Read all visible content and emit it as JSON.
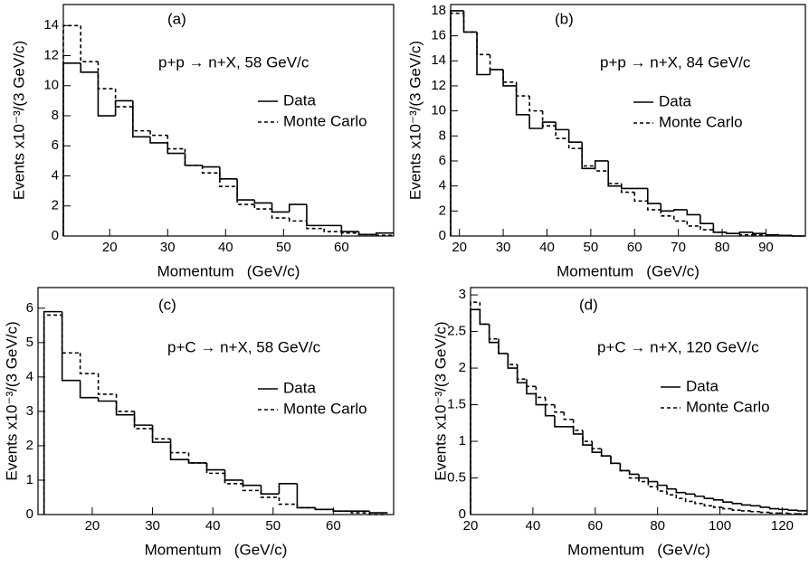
{
  "chart_data": [
    {
      "type": "histogram",
      "panel_label": "(a)",
      "annotation": "p+p → n+X, 58 GeV/c",
      "xlabel": "Momentum   (GeV/c)",
      "ylabel": "Events x10⁻³/(3 GeV/c)",
      "bins": [
        12,
        15,
        18,
        21,
        24,
        27,
        30,
        33,
        36,
        39,
        42,
        45,
        48,
        51,
        54,
        57,
        60,
        63,
        66,
        69
      ],
      "series": [
        {
          "name": "Data",
          "color": "#000000",
          "linestyle": "solid",
          "values": [
            11.5,
            10.9,
            8.0,
            9.0,
            6.6,
            6.2,
            5.5,
            4.7,
            4.6,
            3.8,
            2.4,
            2.2,
            1.6,
            2.1,
            0.7,
            0.7,
            0.3,
            0.1,
            0.2
          ]
        },
        {
          "name": "Monte Carlo",
          "color": "#000000",
          "linestyle": "dashed",
          "values": [
            14.0,
            11.6,
            9.8,
            8.6,
            7.0,
            6.7,
            5.8,
            4.7,
            4.2,
            3.3,
            2.1,
            1.8,
            1.2,
            1.0,
            0.5,
            0.3,
            0.2,
            0.1,
            0.05
          ]
        }
      ],
      "xlim": [
        12,
        69
      ],
      "xticks": [
        20,
        30,
        40,
        50,
        60
      ],
      "ylim": [
        0,
        15.4
      ],
      "yticks": [
        0,
        2,
        4,
        6,
        8,
        10,
        12,
        14
      ]
    },
    {
      "type": "histogram",
      "panel_label": "(b)",
      "annotation": "p+p → n+X, 84 GeV/c",
      "xlabel": "Momentum   (GeV/c)",
      "ylabel": "Events x10⁻³/(3 GeV/c)",
      "bins": [
        18,
        21,
        24,
        27,
        30,
        33,
        36,
        39,
        42,
        45,
        48,
        51,
        54,
        57,
        60,
        63,
        66,
        69,
        72,
        75,
        78,
        81,
        84,
        87,
        90,
        93,
        96,
        99
      ],
      "series": [
        {
          "name": "Data",
          "color": "#000000",
          "linestyle": "solid",
          "values": [
            18,
            16.3,
            12.9,
            13.3,
            12.0,
            9.7,
            8.6,
            9.1,
            8.5,
            7.5,
            5.4,
            6.0,
            4.0,
            3.8,
            3.8,
            2.6,
            2.0,
            2.1,
            1.7,
            1.0,
            0.3,
            0.2,
            0.3,
            0.2,
            0.1,
            0.05,
            0
          ]
        },
        {
          "name": "Monte Carlo",
          "color": "#000000",
          "linestyle": "dashed",
          "values": [
            17.8,
            16.3,
            14.5,
            13.3,
            12.3,
            11.2,
            10.0,
            8.8,
            7.8,
            7.0,
            5.6,
            5.2,
            4.2,
            3.5,
            2.8,
            2.1,
            1.6,
            1.2,
            0.8,
            0.5,
            0.3,
            0.2,
            0.1,
            0.1,
            0.05,
            0.02,
            0
          ]
        }
      ],
      "xlim": [
        18,
        99
      ],
      "xticks": [
        20,
        30,
        40,
        50,
        60,
        70,
        80,
        90
      ],
      "ylim": [
        0,
        18.5
      ],
      "yticks": [
        0,
        2,
        4,
        6,
        8,
        10,
        12,
        14,
        16,
        18
      ]
    },
    {
      "type": "histogram",
      "panel_label": "(c)",
      "annotation": "p+C → n+X, 58 GeV/c",
      "xlabel": "Momentum   (GeV/c)",
      "ylabel": "Events x10⁻³/(3 GeV/c)",
      "bins": [
        12,
        15,
        18,
        21,
        24,
        27,
        30,
        33,
        36,
        39,
        42,
        45,
        48,
        51,
        54,
        57,
        60,
        63,
        66,
        69
      ],
      "series": [
        {
          "name": "Data",
          "color": "#000000",
          "linestyle": "solid",
          "values": [
            5.9,
            3.9,
            3.4,
            3.3,
            2.9,
            2.6,
            2.1,
            1.6,
            1.5,
            1.3,
            1.0,
            0.85,
            0.6,
            0.9,
            0.2,
            0.15,
            0.1,
            0.1,
            0.05
          ]
        },
        {
          "name": "Monte Carlo",
          "color": "#000000",
          "linestyle": "dashed",
          "values": [
            5.8,
            4.7,
            4.1,
            3.5,
            3.0,
            2.5,
            2.2,
            1.8,
            1.5,
            1.2,
            0.9,
            0.7,
            0.5,
            0.3,
            0.2,
            0.15,
            0.1,
            0.05,
            0
          ]
        }
      ],
      "xlim": [
        11,
        70
      ],
      "xticks": [
        20,
        30,
        40,
        50,
        60
      ],
      "ylim": [
        0,
        6.6
      ],
      "yticks": [
        0,
        1,
        2,
        3,
        4,
        5,
        6
      ]
    },
    {
      "type": "histogram",
      "panel_label": "(d)",
      "annotation": "p+C → n+X, 120 GeV/c",
      "xlabel": "Momentum   (GeV/c)",
      "ylabel": "Events x10⁻³/(3 GeV/c)",
      "bins": [
        20,
        23,
        26,
        29,
        32,
        35,
        38,
        41,
        44,
        47,
        50,
        53,
        56,
        59,
        62,
        65,
        68,
        71,
        74,
        77,
        80,
        83,
        86,
        89,
        92,
        95,
        98,
        101,
        104,
        107,
        110,
        113,
        116,
        119,
        122,
        125,
        128
      ],
      "series": [
        {
          "name": "Data",
          "color": "#000000",
          "linestyle": "solid",
          "values": [
            2.8,
            2.6,
            2.35,
            2.2,
            2.0,
            1.8,
            1.65,
            1.5,
            1.35,
            1.2,
            1.2,
            1.1,
            0.95,
            0.85,
            0.8,
            0.7,
            0.6,
            0.55,
            0.5,
            0.45,
            0.4,
            0.35,
            0.3,
            0.28,
            0.25,
            0.22,
            0.2,
            0.17,
            0.15,
            0.13,
            0.12,
            0.1,
            0.08,
            0.07,
            0.06,
            0.05
          ]
        },
        {
          "name": "Monte Carlo",
          "color": "#000000",
          "linestyle": "dashed",
          "values": [
            2.9,
            2.6,
            2.4,
            2.2,
            2.05,
            1.85,
            1.75,
            1.6,
            1.5,
            1.4,
            1.3,
            1.15,
            1.0,
            0.9,
            0.8,
            0.7,
            0.6,
            0.5,
            0.45,
            0.38,
            0.32,
            0.27,
            0.22,
            0.18,
            0.15,
            0.12,
            0.1,
            0.08,
            0.06,
            0.05,
            0.04,
            0.03,
            0.02,
            0.02,
            0.01,
            0.01
          ]
        }
      ],
      "xlim": [
        20,
        128
      ],
      "xticks": [
        20,
        40,
        60,
        80,
        100,
        120
      ],
      "ylim": [
        0,
        3.1
      ],
      "yticks": [
        0,
        0.5,
        1,
        1.5,
        2,
        2.5,
        3
      ]
    }
  ]
}
